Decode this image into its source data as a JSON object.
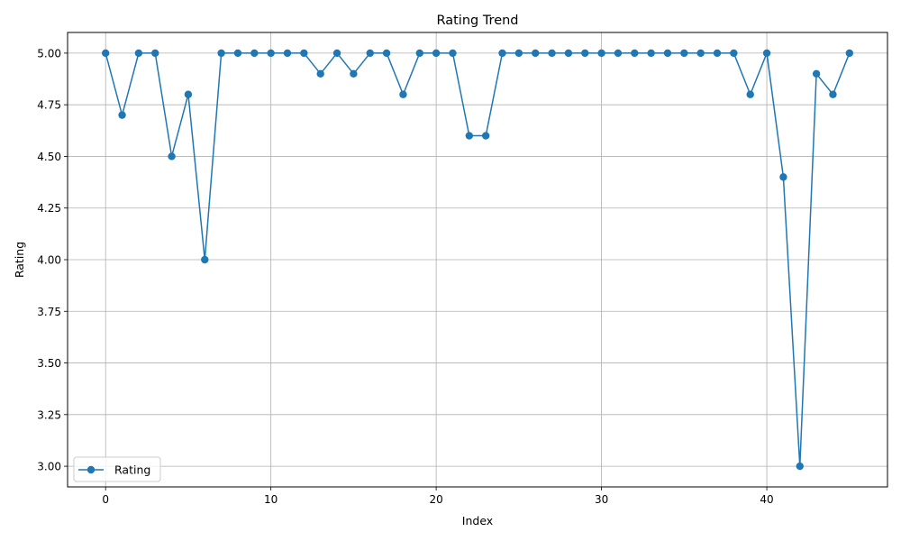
{
  "chart_data": {
    "type": "line",
    "title": "Rating Trend",
    "xlabel": "Index",
    "ylabel": "Rating",
    "xlim": [
      -2.3,
      47.3
    ],
    "ylim": [
      2.9,
      5.1
    ],
    "xticks": [
      0,
      10,
      20,
      30,
      40
    ],
    "yticks": [
      3.0,
      3.25,
      3.5,
      3.75,
      4.0,
      4.25,
      4.5,
      4.75,
      5.0
    ],
    "ytick_labels": [
      "3.00",
      "3.25",
      "3.50",
      "3.75",
      "4.00",
      "4.25",
      "4.50",
      "4.75",
      "5.00"
    ],
    "grid": true,
    "legend_position": "lower-left",
    "series": [
      {
        "name": "Rating",
        "color": "#1f77b4",
        "marker": "circle",
        "x": [
          0,
          1,
          2,
          3,
          4,
          5,
          6,
          7,
          8,
          9,
          10,
          11,
          12,
          13,
          14,
          15,
          16,
          17,
          18,
          19,
          20,
          21,
          22,
          23,
          24,
          25,
          26,
          27,
          28,
          29,
          30,
          31,
          32,
          33,
          34,
          35,
          36,
          37,
          38,
          39,
          40,
          41,
          42,
          43,
          44,
          45
        ],
        "values": [
          5.0,
          4.7,
          5.0,
          5.0,
          4.5,
          4.8,
          4.0,
          5.0,
          5.0,
          5.0,
          5.0,
          5.0,
          5.0,
          4.9,
          5.0,
          4.9,
          5.0,
          5.0,
          4.8,
          5.0,
          5.0,
          5.0,
          4.6,
          4.6,
          5.0,
          5.0,
          5.0,
          5.0,
          5.0,
          5.0,
          5.0,
          5.0,
          5.0,
          5.0,
          5.0,
          5.0,
          5.0,
          5.0,
          5.0,
          4.8,
          5.0,
          4.4,
          3.0,
          4.9,
          4.8,
          5.0
        ]
      }
    ]
  }
}
